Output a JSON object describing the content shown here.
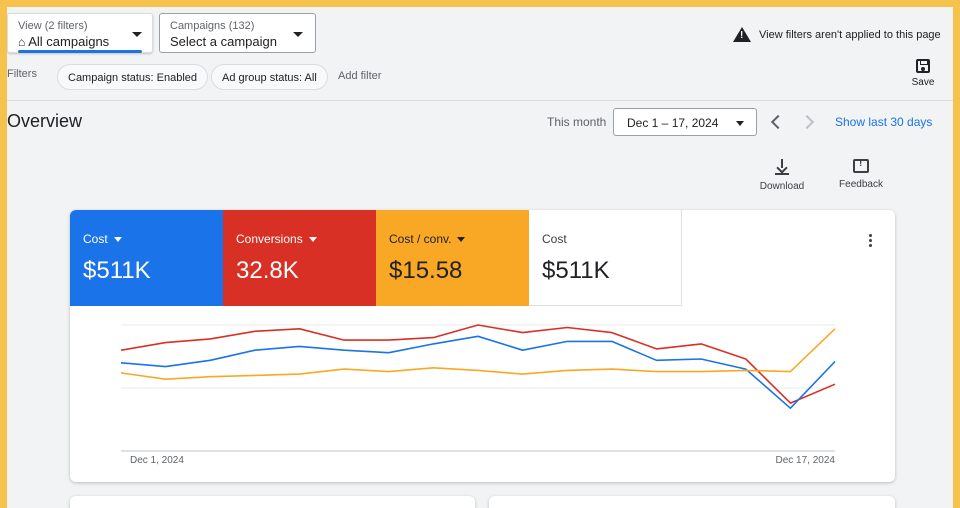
{
  "header": {
    "view_selector": {
      "small": "View (2 filters)",
      "value": "All campaigns"
    },
    "campaign_selector": {
      "small": "Campaigns (132)",
      "value": "Select a campaign"
    },
    "notice": "View filters aren't applied to this page",
    "save_label": "Save"
  },
  "filters": {
    "label": "Filters",
    "chips": [
      "Campaign status: Enabled",
      "Ad group status: All"
    ],
    "add_filter": "Add filter"
  },
  "overview": {
    "title": "Overview",
    "period_label": "This month",
    "date_range": "Dec 1 – 17, 2024",
    "show_last": "Show last 30 days",
    "download_label": "Download",
    "feedback_label": "Feedback"
  },
  "metrics": [
    {
      "name": "Cost",
      "value": "$511K",
      "color": "#1a73e8",
      "selected": true
    },
    {
      "name": "Conversions",
      "value": "32.8K",
      "color": "#d93025",
      "selected": true
    },
    {
      "name": "Cost / conv.",
      "value": "$15.58",
      "color": "#f9a825",
      "selected": true
    },
    {
      "name": "Cost",
      "value": "$511K",
      "color": "#ffffff",
      "selected": false
    }
  ],
  "chart_data": {
    "type": "line",
    "x_start_label": "Dec 1, 2024",
    "x_end_label": "Dec 17, 2024",
    "x": [
      1,
      2,
      3,
      4,
      5,
      6,
      7,
      8,
      9,
      10,
      11,
      12,
      13,
      14,
      15,
      16,
      17
    ],
    "ylim": [
      0,
      100
    ],
    "grid": true,
    "series": [
      {
        "color": "#d93025",
        "values": [
          80,
          86,
          89,
          95,
          97,
          88,
          88,
          90,
          100,
          94,
          98,
          94,
          81,
          85,
          73,
          38,
          53
        ]
      },
      {
        "color": "#1a73e8",
        "values": [
          70,
          67,
          72,
          80,
          83,
          80,
          78,
          85,
          91,
          80,
          87,
          87,
          72,
          73,
          65,
          34,
          71
        ]
      },
      {
        "color": "#f9a825",
        "values": [
          62,
          57,
          59,
          60,
          61,
          65,
          63,
          66,
          64,
          61,
          64,
          65,
          63,
          63,
          64,
          63,
          97
        ]
      }
    ]
  }
}
